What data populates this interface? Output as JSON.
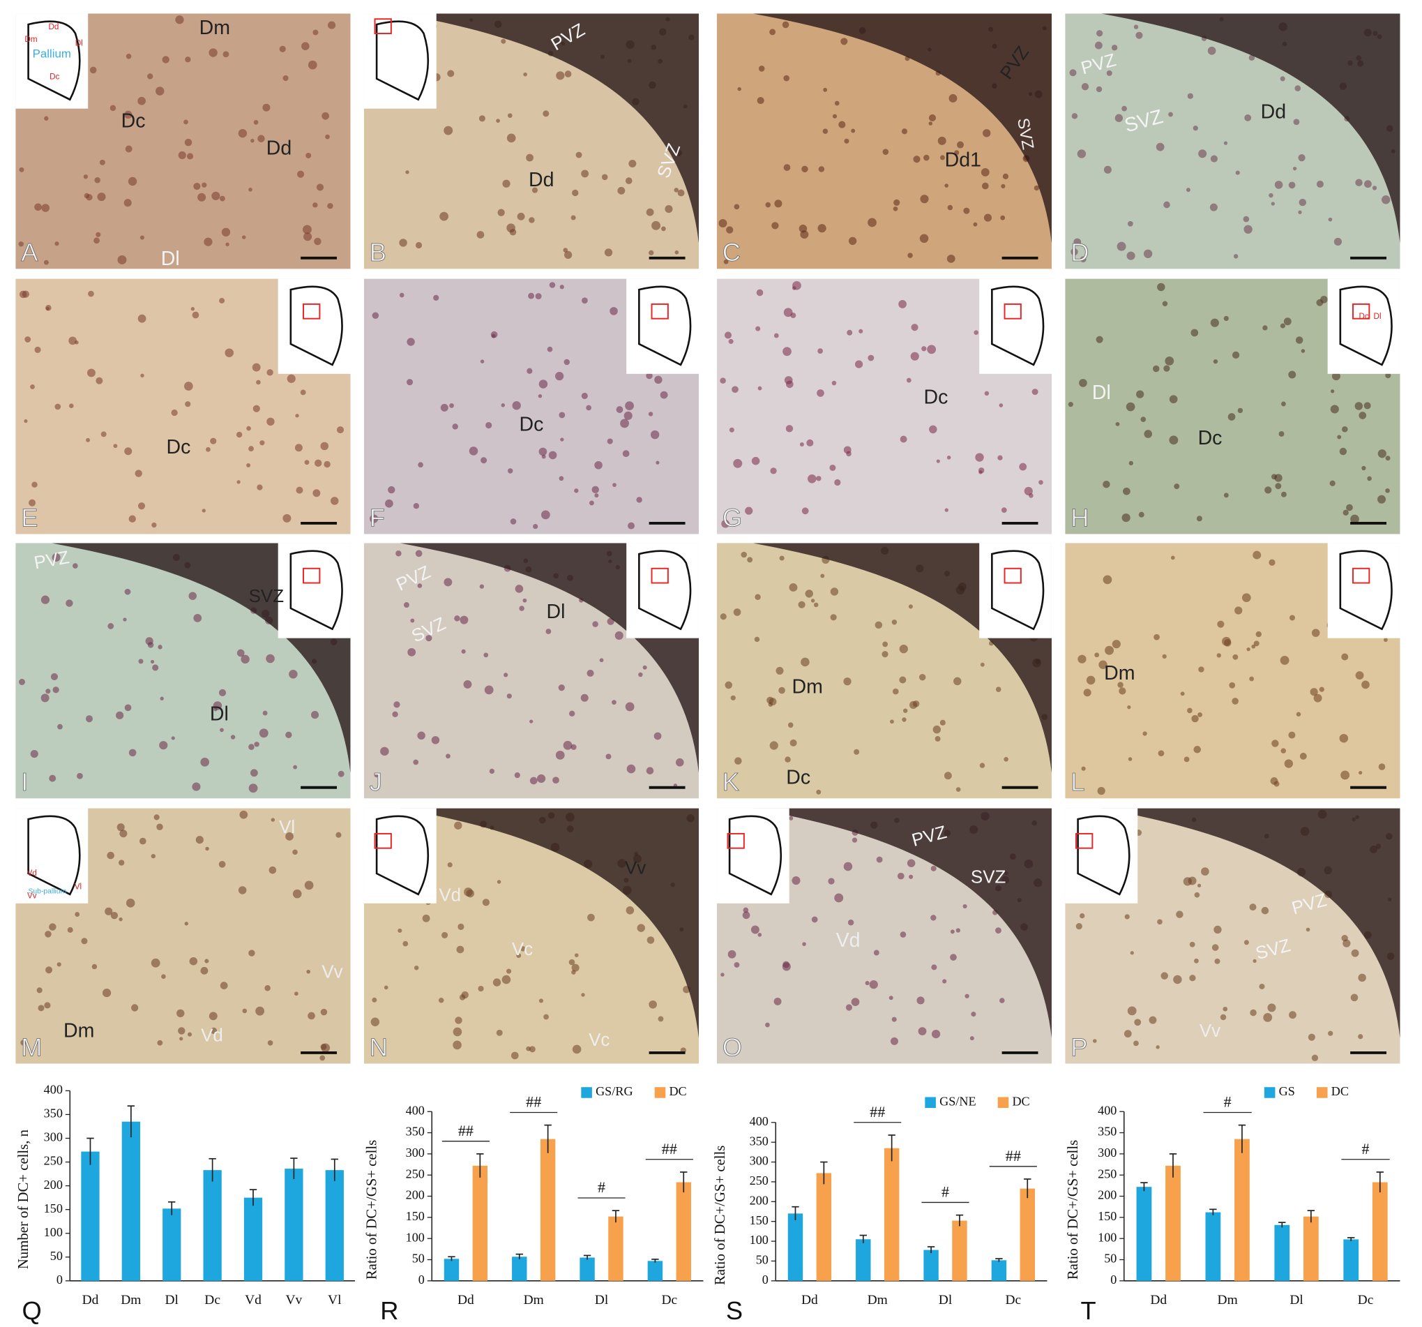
{
  "figure": {
    "panels": [
      {
        "letter": "A",
        "labels": [
          "Dd",
          "Dm",
          "Dl",
          "Pallium",
          "Dc",
          "Dm",
          "Dc",
          "Dd",
          "Dl"
        ]
      },
      {
        "letter": "B",
        "labels": [
          "PVZ",
          "SVZ",
          "Dd"
        ]
      },
      {
        "letter": "C",
        "labels": [
          "PVZ",
          "SVZ",
          "Dd1"
        ]
      },
      {
        "letter": "D",
        "labels": [
          "PVZ",
          "SVZ",
          "Dd"
        ]
      },
      {
        "letter": "E",
        "labels": [
          "Dc"
        ]
      },
      {
        "letter": "F",
        "labels": [
          "Dc"
        ]
      },
      {
        "letter": "G",
        "labels": [
          "Dc"
        ]
      },
      {
        "letter": "H",
        "labels": [
          "Dc",
          "Dl",
          "Dl",
          "Dc"
        ]
      },
      {
        "letter": "I",
        "labels": [
          "PVZ",
          "SVZ",
          "Dl"
        ]
      },
      {
        "letter": "J",
        "labels": [
          "PVZ",
          "SVZ",
          "Dl"
        ]
      },
      {
        "letter": "K",
        "labels": [
          "Dm",
          "Dc"
        ]
      },
      {
        "letter": "L",
        "labels": [
          "Dm"
        ]
      },
      {
        "letter": "M",
        "labels": [
          "Vd",
          "Sub-pallium",
          "Vl",
          "Vv",
          "Vl",
          "Vv",
          "Dm",
          "Vd"
        ]
      },
      {
        "letter": "N",
        "labels": [
          "Vd",
          "Vv",
          "Vc",
          "Vc"
        ]
      },
      {
        "letter": "O",
        "labels": [
          "PVZ",
          "SVZ",
          "Vd"
        ]
      },
      {
        "letter": "P",
        "labels": [
          "PVZ",
          "SVZ",
          "Vv"
        ]
      }
    ]
  },
  "chart_data": [
    {
      "type": "bar",
      "panel_label": "Q",
      "y_label": "Number of DC+ cells, n",
      "categories": [
        "Dd",
        "Dm",
        "Dl",
        "Dc",
        "Vd",
        "Vv",
        "Vl"
      ],
      "values": [
        272,
        335,
        152,
        233,
        175,
        236,
        233
      ],
      "errors": [
        28,
        33,
        14,
        24,
        17,
        22,
        23
      ],
      "color": "#1ea7df",
      "ylim": [
        0,
        400
      ],
      "yticks": [
        0,
        50,
        100,
        150,
        200,
        250,
        300,
        350,
        400
      ]
    },
    {
      "type": "bar",
      "panel_label": "R",
      "y_label": "Ratio of DC+/GS+ cells",
      "legend": "top-right",
      "categories": [
        "Dd",
        "Dm",
        "Dl",
        "Dc"
      ],
      "series": [
        {
          "name": "GS/RG",
          "color": "#1ea7df",
          "values": [
            52,
            57,
            55,
            47
          ],
          "errors": [
            5,
            6,
            5,
            4
          ]
        },
        {
          "name": "DC",
          "color": "#f7a14c",
          "values": [
            272,
            335,
            152,
            233
          ],
          "errors": [
            28,
            33,
            14,
            24
          ]
        }
      ],
      "annotations": [
        "##",
        "##",
        "#",
        "##"
      ],
      "ylim": [
        0,
        400
      ],
      "yticks": [
        0,
        50,
        100,
        150,
        200,
        250,
        300,
        350,
        400
      ]
    },
    {
      "type": "bar",
      "panel_label": "S",
      "y_label": "Ratio of DC+/GS+ cells",
      "legend": "top-right",
      "categories": [
        "Dd",
        "Dm",
        "Dl",
        "Dc"
      ],
      "series": [
        {
          "name": "GS/NE",
          "color": "#1ea7df",
          "values": [
            170,
            105,
            78,
            52
          ],
          "errors": [
            17,
            10,
            8,
            4
          ]
        },
        {
          "name": "DC",
          "color": "#f7a14c",
          "values": [
            272,
            335,
            152,
            233
          ],
          "errors": [
            28,
            33,
            14,
            24
          ]
        }
      ],
      "annotations": [
        null,
        "##",
        "#",
        "##"
      ],
      "ylim": [
        0,
        400
      ],
      "yticks": [
        0,
        50,
        100,
        150,
        200,
        250,
        300,
        350,
        400
      ]
    },
    {
      "type": "bar",
      "panel_label": "T",
      "y_label": "Ratio of DC+/GS+ cells",
      "legend": "top-right",
      "categories": [
        "Dd",
        "Dm",
        "Dl",
        "Dc"
      ],
      "series": [
        {
          "name": "GS",
          "color": "#1ea7df",
          "values": [
            222,
            162,
            132,
            98
          ],
          "errors": [
            10,
            7,
            6,
            4
          ]
        },
        {
          "name": "DC",
          "color": "#f7a14c",
          "values": [
            272,
            335,
            152,
            233
          ],
          "errors": [
            28,
            33,
            14,
            24
          ]
        }
      ],
      "annotations": [
        null,
        "#",
        null,
        "#"
      ],
      "ylim": [
        0,
        400
      ],
      "yticks": [
        0,
        50,
        100,
        150,
        200,
        250,
        300,
        350,
        400
      ]
    }
  ]
}
